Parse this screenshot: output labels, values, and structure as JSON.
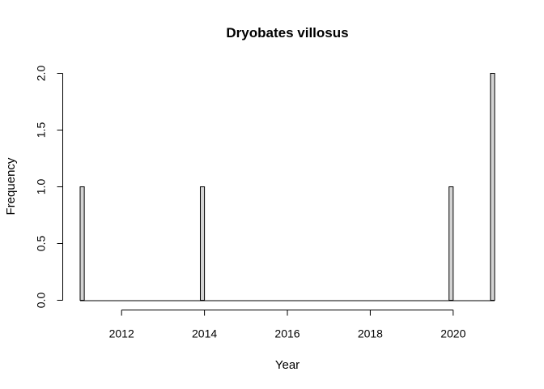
{
  "chart_data": {
    "type": "bar",
    "title": "Dryobates villosus",
    "xlabel": "Year",
    "ylabel": "Frequency",
    "xlim": [
      2011,
      2021
    ],
    "ylim": [
      0,
      2
    ],
    "x_ticks": [
      2012,
      2014,
      2016,
      2018,
      2020
    ],
    "x_tick_labels": [
      "2012",
      "2014",
      "2016",
      "2018",
      "2020"
    ],
    "y_ticks": [
      0,
      0.5,
      1,
      1.5,
      2
    ],
    "y_tick_labels": [
      "0.0",
      "0.5",
      "1.0",
      "1.5",
      "2.0"
    ],
    "bin_width": 0.1,
    "bins": [
      {
        "start": 2011.0,
        "end": 2011.1,
        "count": 1
      },
      {
        "start": 2013.9,
        "end": 2014.0,
        "count": 1
      },
      {
        "start": 2019.9,
        "end": 2020.0,
        "count": 1
      },
      {
        "start": 2020.9,
        "end": 2021.0,
        "count": 2
      }
    ],
    "bar_color": "#d3d3d3",
    "grid": false,
    "legend": "none"
  }
}
